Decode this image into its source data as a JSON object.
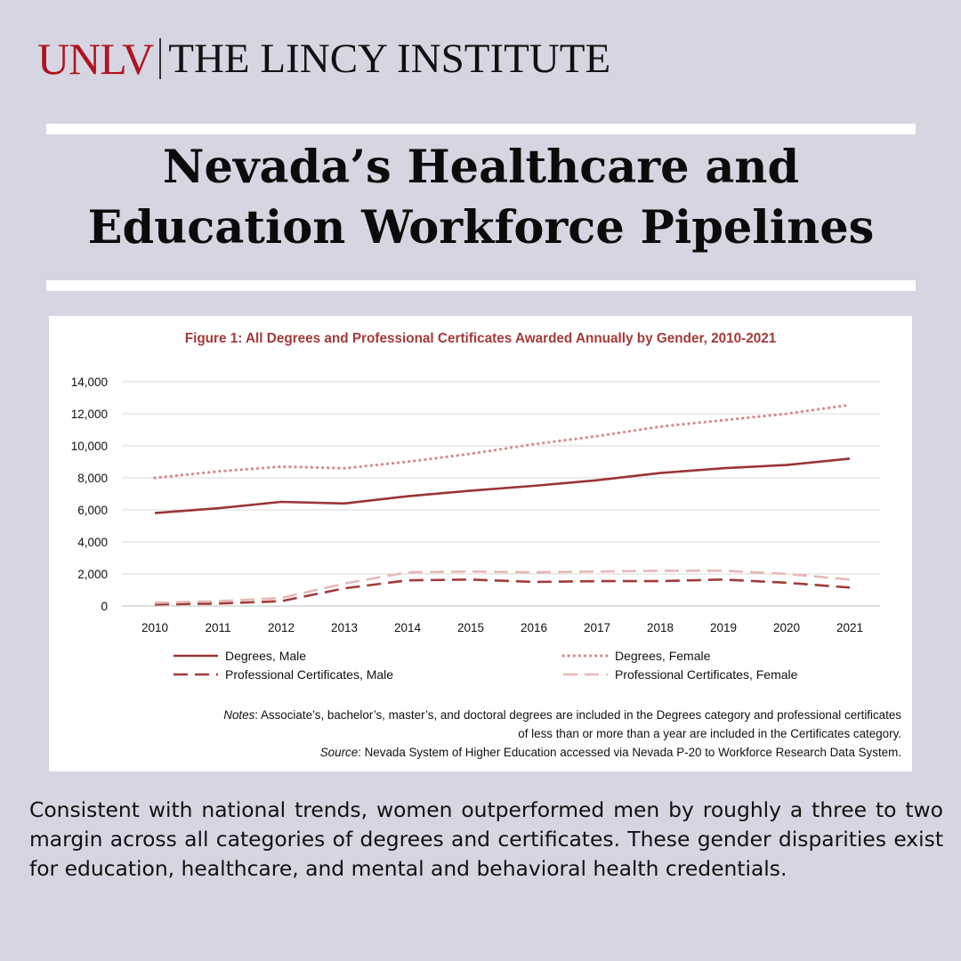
{
  "header": {
    "brand": "UNLV",
    "institute": "THE LINCY INSTITUTE"
  },
  "title": {
    "line1": "Nevada’s Healthcare and",
    "line2": "Education Workforce Pipelines"
  },
  "chart_data": {
    "type": "line",
    "title": "Figure 1: All Degrees and Professional Certificates Awarded Annually by Gender, 2010-2021",
    "x": [
      "2010",
      "2011",
      "2012",
      "2013",
      "2014",
      "2015",
      "2016",
      "2017",
      "2018",
      "2019",
      "2020",
      "2021"
    ],
    "yticks": [
      "0",
      "2,000",
      "4,000",
      "6,000",
      "8,000",
      "10,000",
      "12,000",
      "14,000"
    ],
    "ylim": [
      0,
      14000
    ],
    "grid": true,
    "legend_placement": "bottom",
    "series": [
      {
        "name": "Degrees, Male",
        "style": "solid",
        "color": "#9b3434",
        "values": [
          5800,
          6100,
          6500,
          6400,
          6850,
          7200,
          7500,
          7850,
          8300,
          8600,
          8800,
          9200
        ]
      },
      {
        "name": "Degrees, Female",
        "style": "dotted",
        "color": "#d98a8a",
        "values": [
          8000,
          8400,
          8700,
          8600,
          9000,
          9500,
          10100,
          10600,
          11200,
          11600,
          12000,
          12550
        ]
      },
      {
        "name": "Professional Certificates, Male",
        "style": "dashed",
        "color": "#a33a3a",
        "values": [
          100,
          150,
          300,
          1100,
          1600,
          1650,
          1500,
          1550,
          1550,
          1650,
          1450,
          1150
        ]
      },
      {
        "name": "Professional Certificates, Female",
        "style": "dashed",
        "color": "#e6b8b8",
        "values": [
          200,
          300,
          500,
          1400,
          2100,
          2150,
          2100,
          2150,
          2200,
          2200,
          2000,
          1650
        ]
      }
    ]
  },
  "notes": {
    "notes_label": "Notes",
    "notes_line1": ": Associate’s, bachelor’s, master’s, and doctoral degrees are included in the Degrees category and professional certificates",
    "notes_line2": "of less than or more than a year are included in the Certificates category.",
    "source_label": "Source",
    "source_text": ": Nevada System of Higher Education accessed via Nevada P-20 to Workforce Research Data System."
  },
  "body": {
    "text": "Consistent with national trends, women outperformed men by roughly a three to two margin across all categories of degrees and certificates. These gender disparities exist for education, healthcare, and mental and behavioral health credentials."
  },
  "colors": {
    "background": "#d6d6e2",
    "brand_red": "#b1121f",
    "figure_title": "#a33a3a"
  }
}
